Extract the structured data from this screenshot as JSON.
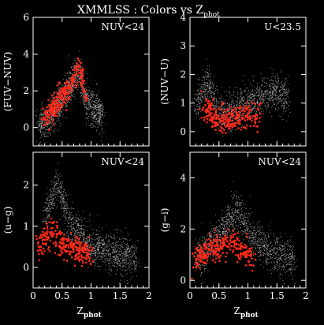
{
  "figure": {
    "title": "XMMLSS :   Colors vs Z",
    "title_sub": "phot"
  },
  "colors": {
    "background": "#000000",
    "foreground": "#ffffff",
    "field_points": "#c8c8c8",
    "selected_points": "#ff2a1a"
  },
  "chart_data": [
    {
      "type": "scatter",
      "panel": "top-left",
      "annotation": "NUV<24",
      "xlabel": "",
      "ylabel": "(FUV−NUV)",
      "xlim": [
        0,
        2
      ],
      "ylim": [
        -1,
        6
      ],
      "x_ticks": [
        0,
        0.5,
        1,
        1.5,
        2
      ],
      "x_tick_labels": [],
      "y_ticks": [
        0,
        2,
        4,
        6
      ],
      "y_tick_labels": [
        "0",
        "2",
        "4",
        "6"
      ],
      "grid": false,
      "series": [
        {
          "color": "#c8c8c8",
          "points": [
            [
              0.1,
              0.1
            ],
            [
              0.2,
              0.3
            ],
            [
              0.3,
              0.6
            ],
            [
              0.4,
              1.0
            ],
            [
              0.5,
              1.5
            ],
            [
              0.6,
              2.0
            ],
            [
              0.7,
              2.6
            ],
            [
              0.8,
              3.0
            ],
            [
              0.85,
              2.4
            ],
            [
              0.9,
              1.6
            ],
            [
              1.0,
              1.1
            ],
            [
              1.1,
              0.9
            ],
            [
              1.2,
              0.7
            ]
          ]
        },
        {
          "color": "#ff2a1a",
          "points": [
            [
              0.2,
              0.5
            ],
            [
              0.3,
              0.9
            ],
            [
              0.4,
              1.3
            ],
            [
              0.5,
              1.7
            ],
            [
              0.6,
              2.1
            ],
            [
              0.7,
              2.7
            ],
            [
              0.78,
              3.2
            ],
            [
              0.85,
              2.8
            ],
            [
              0.9,
              2.0
            ]
          ]
        }
      ]
    },
    {
      "type": "scatter",
      "panel": "top-right",
      "annotation": "U<23.5",
      "xlabel": "",
      "ylabel": "(NUV−U)",
      "xlim": [
        0,
        2
      ],
      "ylim": [
        -0.5,
        4
      ],
      "x_ticks": [
        0,
        0.5,
        1,
        1.5,
        2
      ],
      "x_tick_labels": [],
      "y_ticks": [
        0,
        1,
        2,
        3,
        4
      ],
      "y_tick_labels": [
        "0",
        "1",
        "2",
        "3",
        "4"
      ],
      "grid": false,
      "series": [
        {
          "color": "#c8c8c8",
          "points": [
            [
              0.1,
              0.8
            ],
            [
              0.2,
              1.3
            ],
            [
              0.3,
              1.8
            ],
            [
              0.5,
              0.6
            ],
            [
              0.7,
              0.7
            ],
            [
              0.9,
              0.9
            ],
            [
              1.1,
              1.1
            ],
            [
              1.3,
              1.3
            ],
            [
              1.5,
              1.4
            ],
            [
              1.7,
              1.2
            ]
          ]
        },
        {
          "color": "#ff2a1a",
          "points": [
            [
              0.2,
              0.9
            ],
            [
              0.4,
              0.5
            ],
            [
              0.6,
              0.4
            ],
            [
              0.8,
              0.5
            ],
            [
              1.0,
              0.6
            ],
            [
              1.2,
              0.5
            ]
          ]
        }
      ]
    },
    {
      "type": "scatter",
      "panel": "bottom-left",
      "annotation": "NUV<24",
      "xlabel": "Z",
      "xlabel_sub": "phot",
      "ylabel": "(u−g)",
      "xlim": [
        0,
        2
      ],
      "ylim": [
        -0.5,
        2.8
      ],
      "x_ticks": [
        0,
        0.5,
        1,
        1.5,
        2
      ],
      "x_tick_labels": [
        "0",
        "0.5",
        "1",
        "1.5",
        "2"
      ],
      "y_ticks": [
        0,
        1,
        2
      ],
      "y_tick_labels": [
        "0",
        "1",
        "2"
      ],
      "grid": false,
      "series": [
        {
          "color": "#c8c8c8",
          "points": [
            [
              0.2,
              1.2
            ],
            [
              0.3,
              1.6
            ],
            [
              0.4,
              2.0
            ],
            [
              0.5,
              1.8
            ],
            [
              0.6,
              1.2
            ],
            [
              0.8,
              0.8
            ],
            [
              1.0,
              0.5
            ],
            [
              1.2,
              0.4
            ],
            [
              1.5,
              0.3
            ],
            [
              1.8,
              0.25
            ]
          ]
        },
        {
          "color": "#ff2a1a",
          "points": [
            [
              0.1,
              0.5
            ],
            [
              0.2,
              0.7
            ],
            [
              0.3,
              0.8
            ],
            [
              0.4,
              0.7
            ],
            [
              0.5,
              0.6
            ],
            [
              0.6,
              0.5
            ],
            [
              0.8,
              0.4
            ],
            [
              1.0,
              0.3
            ]
          ]
        }
      ]
    },
    {
      "type": "scatter",
      "panel": "bottom-right",
      "annotation": "NUV<24",
      "xlabel": "Z",
      "xlabel_sub": "phot",
      "ylabel": "(g−i)",
      "xlim": [
        0,
        2
      ],
      "ylim": [
        -0.3,
        5
      ],
      "x_ticks": [
        0,
        0.5,
        1,
        1.5,
        2
      ],
      "x_tick_labels": [
        "0",
        "0.5",
        "1",
        "1.5",
        "2"
      ],
      "y_ticks": [
        0,
        2,
        4
      ],
      "y_tick_labels": [
        "0",
        "2",
        "4"
      ],
      "grid": false,
      "series": [
        {
          "color": "#c8c8c8",
          "points": [
            [
              0.1,
              0.8
            ],
            [
              0.3,
              1.2
            ],
            [
              0.5,
              1.8
            ],
            [
              0.7,
              2.4
            ],
            [
              0.8,
              2.7
            ],
            [
              1.0,
              2.0
            ],
            [
              1.2,
              1.4
            ],
            [
              1.5,
              1.0
            ],
            [
              1.8,
              0.8
            ]
          ]
        },
        {
          "color": "#ff2a1a",
          "points": [
            [
              0.1,
              0.8
            ],
            [
              0.3,
              1.1
            ],
            [
              0.5,
              1.3
            ],
            [
              0.6,
              1.4
            ],
            [
              0.7,
              1.5
            ],
            [
              0.9,
              1.2
            ],
            [
              1.1,
              0.9
            ]
          ]
        }
      ]
    }
  ]
}
